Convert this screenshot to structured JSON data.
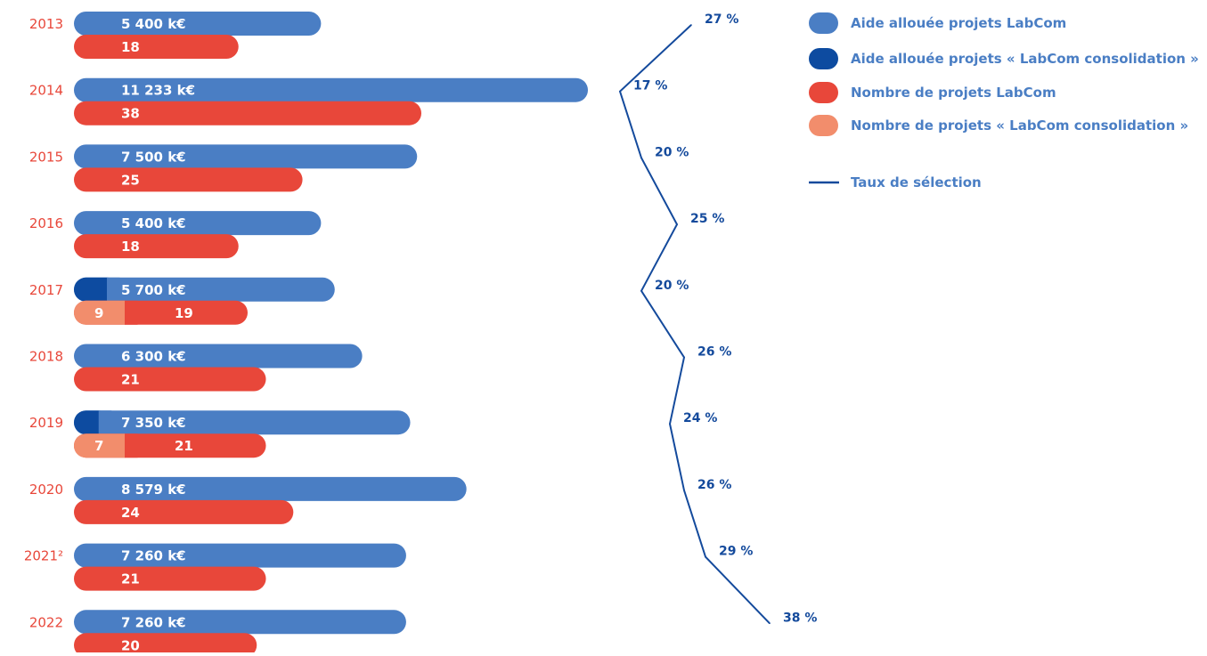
{
  "colors": {
    "aide_labcom": "#4a7ec4",
    "aide_consolidation": "#0d4ba0",
    "projets_labcom": "#e8473a",
    "projets_consolidation": "#f28d6c",
    "taux_line": "#144a9c",
    "year_text": "#e8473a"
  },
  "legend": {
    "aide_labcom": "Aide allouée projets LabCom",
    "aide_consolidation": "Aide allouée projets « LabCom consolidation »",
    "projets_labcom": "Nombre de projets LabCom",
    "projets_consolidation": "Nombre de projets « LabCom consolidation »",
    "taux": "Taux de sélection"
  },
  "chart_data": {
    "type": "bar",
    "orientation": "horizontal",
    "categories": [
      "2013",
      "2014",
      "2015",
      "2016",
      "2017",
      "2018",
      "2019",
      "2020",
      "2021²",
      "2022"
    ],
    "series": [
      {
        "name": "Aide allouée projets LabCom",
        "values": [
          5400,
          11233,
          7500,
          5400,
          5700,
          6300,
          7350,
          8579,
          7260,
          7260
        ],
        "labels": [
          "5 400 k€",
          "11 233 k€",
          "7 500 k€",
          "5 400 k€",
          "5 700 k€",
          "6 300 k€",
          "7 350 k€",
          "8 579 k€",
          "7 260 k€",
          "7 260 k€"
        ]
      },
      {
        "name": "Aide allouée projets « LabCom consolidation »",
        "values": [
          0,
          0,
          0,
          0,
          720,
          0,
          540,
          0,
          0,
          0
        ]
      },
      {
        "name": "Nombre de projets LabCom",
        "values": [
          18,
          38,
          25,
          18,
          19,
          21,
          21,
          24,
          21,
          20
        ],
        "labels": [
          "18",
          "38",
          "25",
          "18",
          "19",
          "21",
          "21",
          "24",
          "21",
          "20"
        ]
      },
      {
        "name": "Nombre de projets « LabCom consolidation »",
        "values": [
          0,
          0,
          0,
          0,
          9,
          0,
          7,
          0,
          0,
          0
        ],
        "labels": [
          "",
          "",
          "",
          "",
          "9",
          "",
          "7",
          "",
          "",
          ""
        ]
      },
      {
        "name": "Taux de sélection",
        "type": "line",
        "values": [
          27,
          17,
          20,
          25,
          20,
          26,
          24,
          26,
          29,
          38
        ],
        "labels": [
          "27 %",
          "17 %",
          "20 %",
          "25 %",
          "20 %",
          "26 %",
          "24 %",
          "26 %",
          "29 %",
          "38 %"
        ]
      }
    ],
    "legend_position": "top-right",
    "grid": false
  }
}
